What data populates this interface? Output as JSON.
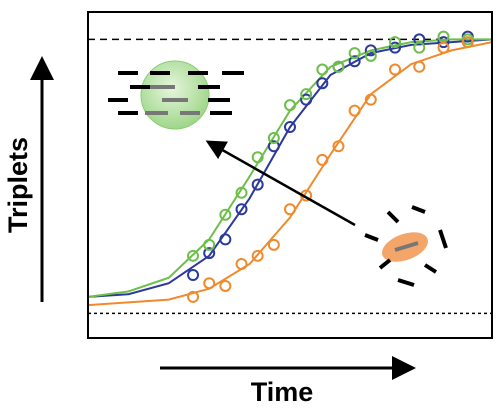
{
  "chart_data": {
    "type": "scatter",
    "x_label": "Time",
    "y_label": "Triplets",
    "xlim": [
      0,
      1
    ],
    "ylim": [
      -0.09,
      1.1
    ],
    "reference_lines": [
      {
        "value": 1,
        "style": "dashed"
      },
      {
        "value": 0,
        "style": "dotted"
      }
    ],
    "x": [
      0.26,
      0.3,
      0.34,
      0.38,
      0.42,
      0.46,
      0.5,
      0.54,
      0.58,
      0.62,
      0.66,
      0.7,
      0.76,
      0.82,
      0.88,
      0.94
    ],
    "fit_x": [
      0,
      0.1,
      0.2,
      0.3,
      0.4,
      0.5,
      0.6,
      0.7,
      0.8,
      0.9,
      1.0
    ],
    "series": [
      {
        "color": "#2b3a9c",
        "values": [
          0.14,
          0.22,
          0.27,
          0.38,
          0.47,
          0.61,
          0.68,
          0.78,
          0.84,
          0.9,
          0.92,
          0.96,
          0.97,
          1.0,
          0.99,
          1.01
        ],
        "fit": [
          0.06,
          0.07,
          0.11,
          0.21,
          0.42,
          0.68,
          0.87,
          0.95,
          0.98,
          0.99,
          1.0
        ]
      },
      {
        "color": "#6dbf4a",
        "values": [
          0.21,
          0.25,
          0.36,
          0.44,
          0.57,
          0.64,
          0.76,
          0.8,
          0.89,
          0.9,
          0.95,
          0.94,
          0.99,
          0.97,
          1.01,
          1.0
        ],
        "fit": [
          0.06,
          0.08,
          0.13,
          0.27,
          0.5,
          0.74,
          0.9,
          0.96,
          0.99,
          1.0,
          1.0
        ]
      },
      {
        "color": "#f08a2c",
        "values": [
          0.06,
          0.11,
          0.1,
          0.18,
          0.21,
          0.25,
          0.38,
          0.43,
          0.56,
          0.61,
          0.74,
          0.78,
          0.89,
          0.9,
          0.97,
          0.99
        ],
        "fit": [
          0.03,
          0.04,
          0.05,
          0.09,
          0.18,
          0.35,
          0.58,
          0.8,
          0.91,
          0.96,
          0.99
        ]
      }
    ]
  }
}
